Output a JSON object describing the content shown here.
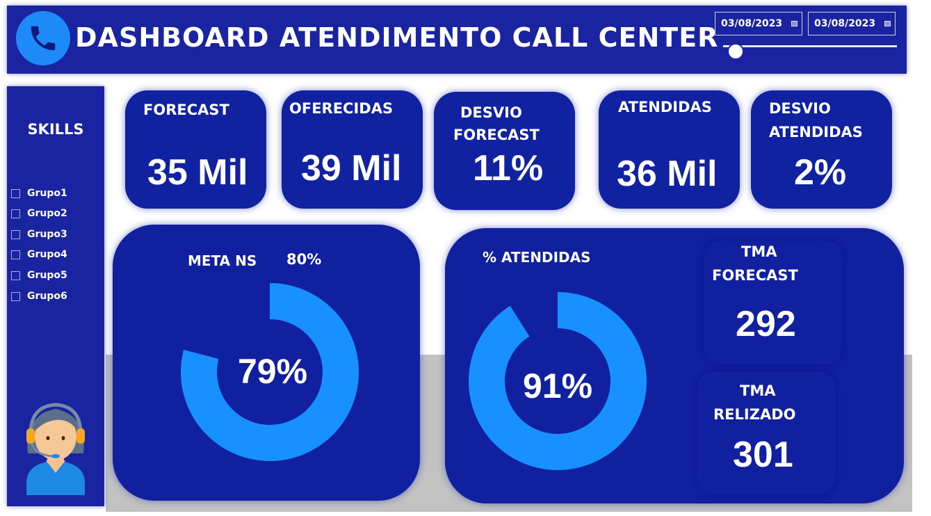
{
  "header": {
    "title": "DASHBOARD ATENDIMENTO CALL CENTER",
    "logo_icon": "phone-icon",
    "date_start": "03/08/2023",
    "date_end": "03/08/2023"
  },
  "sidebar": {
    "title": "SKILLS",
    "items": [
      {
        "label": "Grupo1"
      },
      {
        "label": "Grupo2"
      },
      {
        "label": "Grupo3"
      },
      {
        "label": "Grupo4"
      },
      {
        "label": "Grupo5"
      },
      {
        "label": "Grupo6"
      }
    ],
    "agent_icon": "call-center-agent-icon"
  },
  "kpis": {
    "forecast": {
      "label": "FORECAST",
      "value": "35 Mil"
    },
    "oferecidas": {
      "label": "OFERECIDAS",
      "value": "39 Mil"
    },
    "desvio_forecast": {
      "label_line1": "DESVIO",
      "label_line2": "FORECAST",
      "value": "11%"
    },
    "atendidas": {
      "label": "ATENDIDAS",
      "value": "36 Mil"
    },
    "desvio_atendidas": {
      "label_line1": "DESVIO",
      "label_line2": "ATENDIDAS",
      "value": "2%"
    }
  },
  "gauges": {
    "meta_ns": {
      "label": "META NS",
      "target": "80%",
      "value": "79%",
      "fraction": 0.79
    },
    "atendidas": {
      "label": "% ATENDIDAS",
      "value": "91%",
      "fraction": 0.91
    }
  },
  "tma": {
    "forecast": {
      "label_line1": "TMA",
      "label_line2": "FORECAST",
      "value": "292"
    },
    "realizado": {
      "label_line1": "TMA",
      "label_line2": "RELIZADO",
      "value": "301"
    }
  },
  "colors": {
    "panel": "#1022a0",
    "accent": "#1d8af7",
    "header": "#1a24a0"
  }
}
